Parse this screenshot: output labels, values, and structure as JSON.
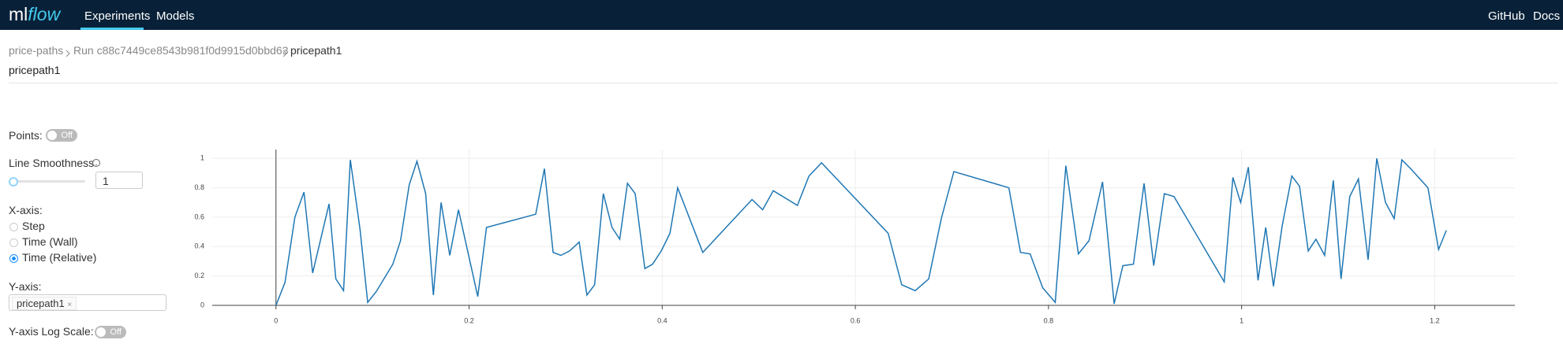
{
  "header": {
    "logo_ml": "ml",
    "logo_flow": "flow",
    "nav": [
      "Experiments",
      "Models"
    ],
    "links": [
      "GitHub",
      "Docs"
    ]
  },
  "breadcrumb": [
    "price-paths",
    "Run c88c7449ce8543b981f0d9915d0bbd63",
    "pricepath1"
  ],
  "title": "pricepath1",
  "controls": {
    "points_label": "Points:",
    "points_toggle": "Off",
    "smoothness_label": "Line Smoothness",
    "smoothness_value": "1",
    "xaxis_label": "X-axis:",
    "xaxis_options": [
      "Step",
      "Time (Wall)",
      "Time (Relative)"
    ],
    "yaxis_label": "Y-axis:",
    "yaxis_tag": "pricepath1",
    "yaxis_tag_remove": "×",
    "log_label": "Y-axis Log Scale:",
    "log_toggle": "Off"
  },
  "chart_data": {
    "type": "line",
    "color": "#1f77b4",
    "grid": true,
    "x": [
      0,
      0.0093,
      0.0196,
      0.029,
      0.038,
      0.055,
      0.062,
      0.07,
      0.077,
      0.087,
      0.095,
      0.104,
      0.121,
      0.129,
      0.138,
      0.146,
      0.155,
      0.163,
      0.171,
      0.18,
      0.189,
      0.209,
      0.218,
      0.269,
      0.278,
      0.287,
      0.295,
      0.304,
      0.314,
      0.322,
      0.33,
      0.339,
      0.348,
      0.356,
      0.364,
      0.372,
      0.382,
      0.39,
      0.399,
      0.408,
      0.416,
      0.442,
      0.493,
      0.504,
      0.515,
      0.54,
      0.552,
      0.565,
      0.634,
      0.648,
      0.662,
      0.676,
      0.689,
      0.702,
      0.759,
      0.771,
      0.781,
      0.794,
      0.807,
      0.818,
      0.831,
      0.842,
      0.856,
      0.868,
      0.877,
      0.888,
      0.899,
      0.909,
      0.92,
      0.93,
      0.982,
      0.991,
      0.999,
      1.007,
      1.017,
      1.025,
      1.033,
      1.042,
      1.052,
      1.06,
      1.069,
      1.077,
      1.086,
      1.095,
      1.103,
      1.112,
      1.121,
      1.131,
      1.14,
      1.149,
      1.158,
      1.166,
      1.175,
      1.193,
      1.204,
      1.212
    ],
    "values": [
      0,
      0.155,
      0.6,
      0.77,
      0.22,
      0.69,
      0.18,
      0.1,
      0.99,
      0.52,
      0.02,
      0.095,
      0.28,
      0.44,
      0.82,
      0.98,
      0.76,
      0.07,
      0.7,
      0.34,
      0.65,
      0.06,
      0.53,
      0.62,
      0.93,
      0.36,
      0.34,
      0.37,
      0.43,
      0.07,
      0.14,
      0.76,
      0.53,
      0.45,
      0.83,
      0.76,
      0.25,
      0.28,
      0.37,
      0.49,
      0.8,
      0.36,
      0.72,
      0.65,
      0.78,
      0.68,
      0.88,
      0.97,
      0.49,
      0.14,
      0.1,
      0.18,
      0.59,
      0.91,
      0.8,
      0.36,
      0.35,
      0.12,
      0.02,
      0.95,
      0.35,
      0.44,
      0.84,
      0.01,
      0.27,
      0.28,
      0.83,
      0.27,
      0.76,
      0.74,
      0.16,
      0.87,
      0.7,
      0.94,
      0.17,
      0.53,
      0.13,
      0.54,
      0.88,
      0.81,
      0.37,
      0.45,
      0.34,
      0.85,
      0.18,
      0.74,
      0.86,
      0.31,
      1.0,
      0.7,
      0.59,
      0.99,
      0.93,
      0.8,
      0.38,
      0.51
    ],
    "xlim": [
      -0.066,
      1.283
    ],
    "ylim": [
      0,
      1.06
    ],
    "xticks": [
      0,
      0.2,
      0.4,
      0.6,
      0.8,
      1,
      1.2
    ],
    "yticks": [
      0,
      0.2,
      0.4,
      0.6,
      0.8,
      1
    ]
  }
}
